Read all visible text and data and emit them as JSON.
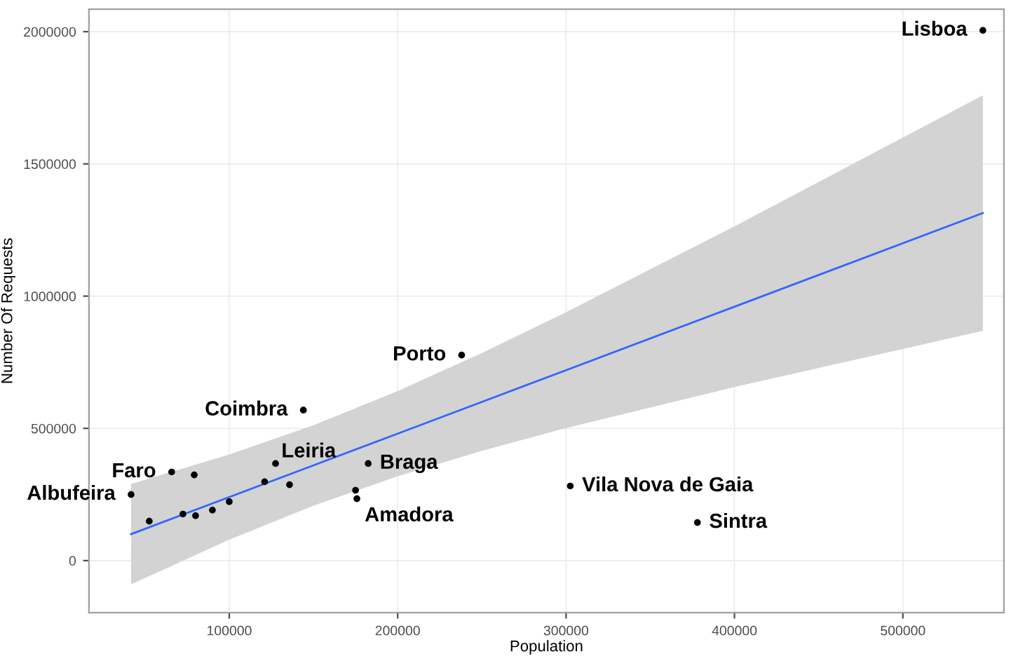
{
  "chart_data": {
    "type": "scatter",
    "xlabel": "Population",
    "ylabel": "Number Of Requests",
    "series": [
      {
        "color": "#000000",
        "marker": "circle",
        "x": [
          41700,
          52500,
          65800,
          72500,
          79200,
          80000,
          90000,
          100000,
          121000,
          127500,
          135800,
          144000,
          175000,
          175800,
          182500,
          238000,
          302500,
          378000,
          547500
        ],
        "values": [
          250000,
          149000,
          335000,
          176000,
          324000,
          170000,
          191000,
          223000,
          298000,
          367000,
          287000,
          569000,
          266000,
          234000,
          367000,
          777000,
          282000,
          144000,
          2005000
        ]
      },
      {
        "type": "line",
        "color": "#3366ff",
        "x": [
          41700,
          100000,
          150000,
          200000,
          250000,
          300000,
          400000,
          547500
        ],
        "values": [
          100000,
          240000,
          360000,
          480000,
          600000,
          720000,
          960000,
          1314000
        ],
        "lower": [
          -90000,
          79000,
          208000,
          319000,
          415000,
          501000,
          656000,
          869000
        ],
        "upper": [
          290000,
          401000,
          512000,
          641000,
          785000,
          939000,
          1264000,
          1759000
        ]
      }
    ],
    "annotations": [
      {
        "text": "Lisboa",
        "x": 547500,
        "y": 2005000
      },
      {
        "text": "Porto",
        "x": 238000,
        "y": 777000
      },
      {
        "text": "Coimbra",
        "x": 144000,
        "y": 569000
      },
      {
        "text": "Faro",
        "x": 65800,
        "y": 335000
      },
      {
        "text": "Albufeira",
        "x": 41700,
        "y": 250000
      },
      {
        "text": "Leiria",
        "x": 127500,
        "y": 367000
      },
      {
        "text": "Braga",
        "x": 182500,
        "y": 367000
      },
      {
        "text": "Amadora",
        "x": 175800,
        "y": 234000
      },
      {
        "text": "Vila Nova de Gaia",
        "x": 302500,
        "y": 282000
      },
      {
        "text": "Sintra",
        "x": 378000,
        "y": 144000
      }
    ],
    "xlim": [
      16700,
      560000
    ],
    "xticks": [
      100000,
      200000,
      300000,
      400000,
      500000
    ],
    "ylim": [
      -197000,
      2085000
    ],
    "yticks": [
      0,
      500000,
      1000000,
      1500000,
      2000000
    ],
    "grid": true
  }
}
